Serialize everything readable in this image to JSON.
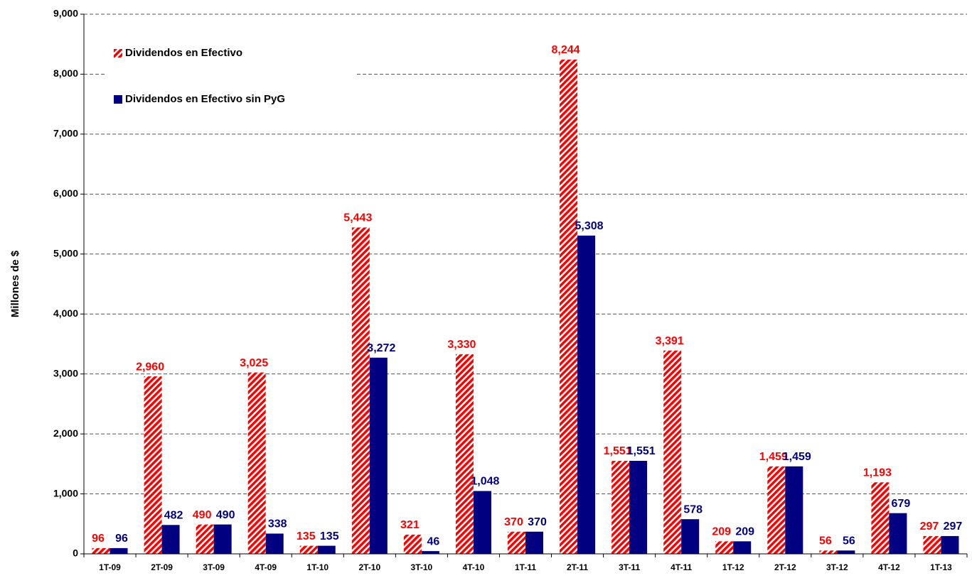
{
  "chart_data": {
    "type": "bar",
    "y_label": "Millones de $",
    "categories": [
      "1T-09",
      "2T-09",
      "3T-09",
      "4T-09",
      "1T-10",
      "2T-10",
      "3T-10",
      "4T-10",
      "1T-11",
      "2T-11",
      "3T-11",
      "4T-11",
      "1T-12",
      "2T-12",
      "3T-12",
      "4T-12",
      "1T-13"
    ],
    "series": [
      {
        "name": "Dividendos en Efectivo",
        "color": "#ff0000",
        "hatch": true,
        "values": [
          96,
          2960,
          490,
          3025,
          135,
          5443,
          321,
          3330,
          370,
          8244,
          1551,
          3391,
          209,
          1459,
          56,
          1193,
          297
        ],
        "value_labels": [
          "96",
          "2,960",
          "490",
          "3,025",
          "135",
          "5,443",
          "321",
          "3,330",
          "370",
          "8,244",
          "1,551",
          "3,391",
          "209",
          "1,459",
          "56",
          "1,193",
          "297"
        ]
      },
      {
        "name": "Dividendos en Efectivo sin PyG",
        "color": "#000080",
        "hatch": false,
        "values": [
          96,
          482,
          490,
          338,
          135,
          3272,
          46,
          1048,
          370,
          5308,
          1551,
          578,
          209,
          1459,
          56,
          679,
          297
        ],
        "value_labels": [
          "96",
          "482",
          "490",
          "338",
          "135",
          "3,272",
          "46",
          "1,048",
          "370",
          "5,308",
          "1,551",
          "578",
          "209",
          "1,459",
          "56",
          "679",
          "297"
        ]
      }
    ],
    "ylim": [
      0,
      9000
    ],
    "yticks": [
      0,
      {
        "value": 1000,
        "label": "1,000"
      },
      {
        "value": 2000,
        "label": "2,000"
      },
      {
        "value": 3000,
        "label": "3,000"
      },
      {
        "value": 4000,
        "label": "4,000"
      },
      {
        "value": 5000,
        "label": "5,000"
      },
      {
        "value": 6000,
        "label": "6,000"
      },
      {
        "value": 7000,
        "label": "7,000"
      },
      {
        "value": 8000,
        "label": "8,000"
      },
      {
        "value": 9000,
        "label": "9,000"
      }
    ],
    "grid": true,
    "legend": "upper left"
  }
}
